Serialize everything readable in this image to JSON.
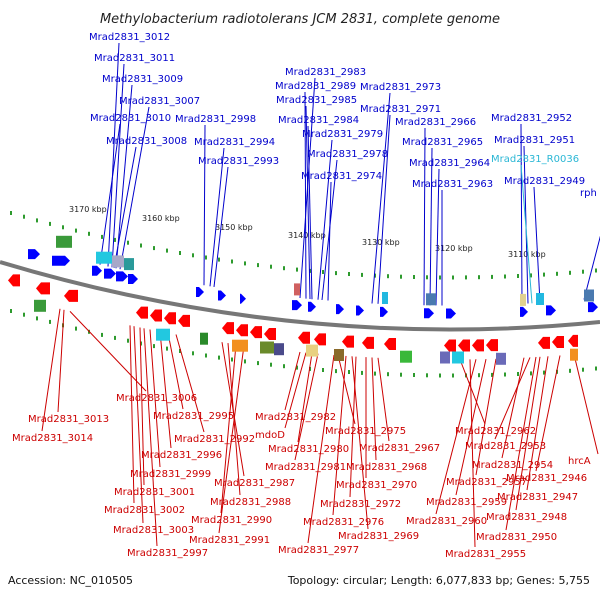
{
  "title": "Methylobacterium radiotolerans JCM 2831, complete genome",
  "footer": {
    "accession": "Accession: NC_010505",
    "summary": "Topology: circular; Length: 6,077,833 bp; Genes: 5,755"
  },
  "colors": {
    "top_label": "#0000cc",
    "rna_label": "#2ab7d5",
    "bottom_label": "#cc0000",
    "forward_gene": "#0000ff",
    "reverse_gene": "#ff0000",
    "backbone": "#777777",
    "tick": "#2d9a2d"
  },
  "scale_labels": [
    "3170 kbp",
    "3160 kbp",
    "3150 kbp",
    "3140 kbp",
    "3130 kbp",
    "3120 kbp",
    "3110 kbp"
  ],
  "top_labels": [
    "Mrad2831_3012",
    "Mrad2831_3011",
    "Mrad2831_3009",
    "Mrad2831_3007",
    "Mrad2831_3010",
    "Mrad2831_3008",
    "Mrad2831_2998",
    "Mrad2831_2994",
    "Mrad2831_2993",
    "Mrad2831_2983",
    "Mrad2831_2989",
    "Mrad2831_2985",
    "Mrad2831_2984",
    "Mrad2831_2979",
    "Mrad2831_2978",
    "Mrad2831_2974",
    "Mrad2831_2973",
    "Mrad2831_2971",
    "Mrad2831_2966",
    "Mrad2831_2965",
    "Mrad2831_2964",
    "Mrad2831_2963",
    "Mrad2831_2952",
    "Mrad2831_2951",
    "Mrad2831_R0036",
    "Mrad2831_2949",
    "rph"
  ],
  "bottom_labels": [
    "Mrad2831_3006",
    "Mrad2831_3013",
    "Mrad2831_3014",
    "Mrad2831_2995",
    "Mrad2831_2992",
    "Mrad2831_2996",
    "Mrad2831_2999",
    "Mrad2831_3001",
    "Mrad2831_3002",
    "Mrad2831_3003",
    "Mrad2831_2997",
    "Mrad2831_2982",
    "mdoD",
    "Mrad2831_2980",
    "Mrad2831_2981",
    "Mrad2831_2987",
    "Mrad2831_2988",
    "Mrad2831_2990",
    "Mrad2831_2991",
    "Mrad2831_2975",
    "Mrad2831_2967",
    "Mrad2831_2968",
    "Mrad2831_2970",
    "Mrad2831_2972",
    "Mrad2831_2976",
    "Mrad2831_2977",
    "Mrad2831_2969",
    "Mrad2831_2962",
    "Mrad2831_2953",
    "Mrad2831_2954",
    "Mrad2831_2957",
    "Mrad2831_2959",
    "Mrad2831_2960",
    "Mrad2831_2955",
    "hrcA",
    "Mrad2831_2946",
    "Mrad2831_2947",
    "Mrad2831_2948",
    "Mrad2831_2950"
  ]
}
